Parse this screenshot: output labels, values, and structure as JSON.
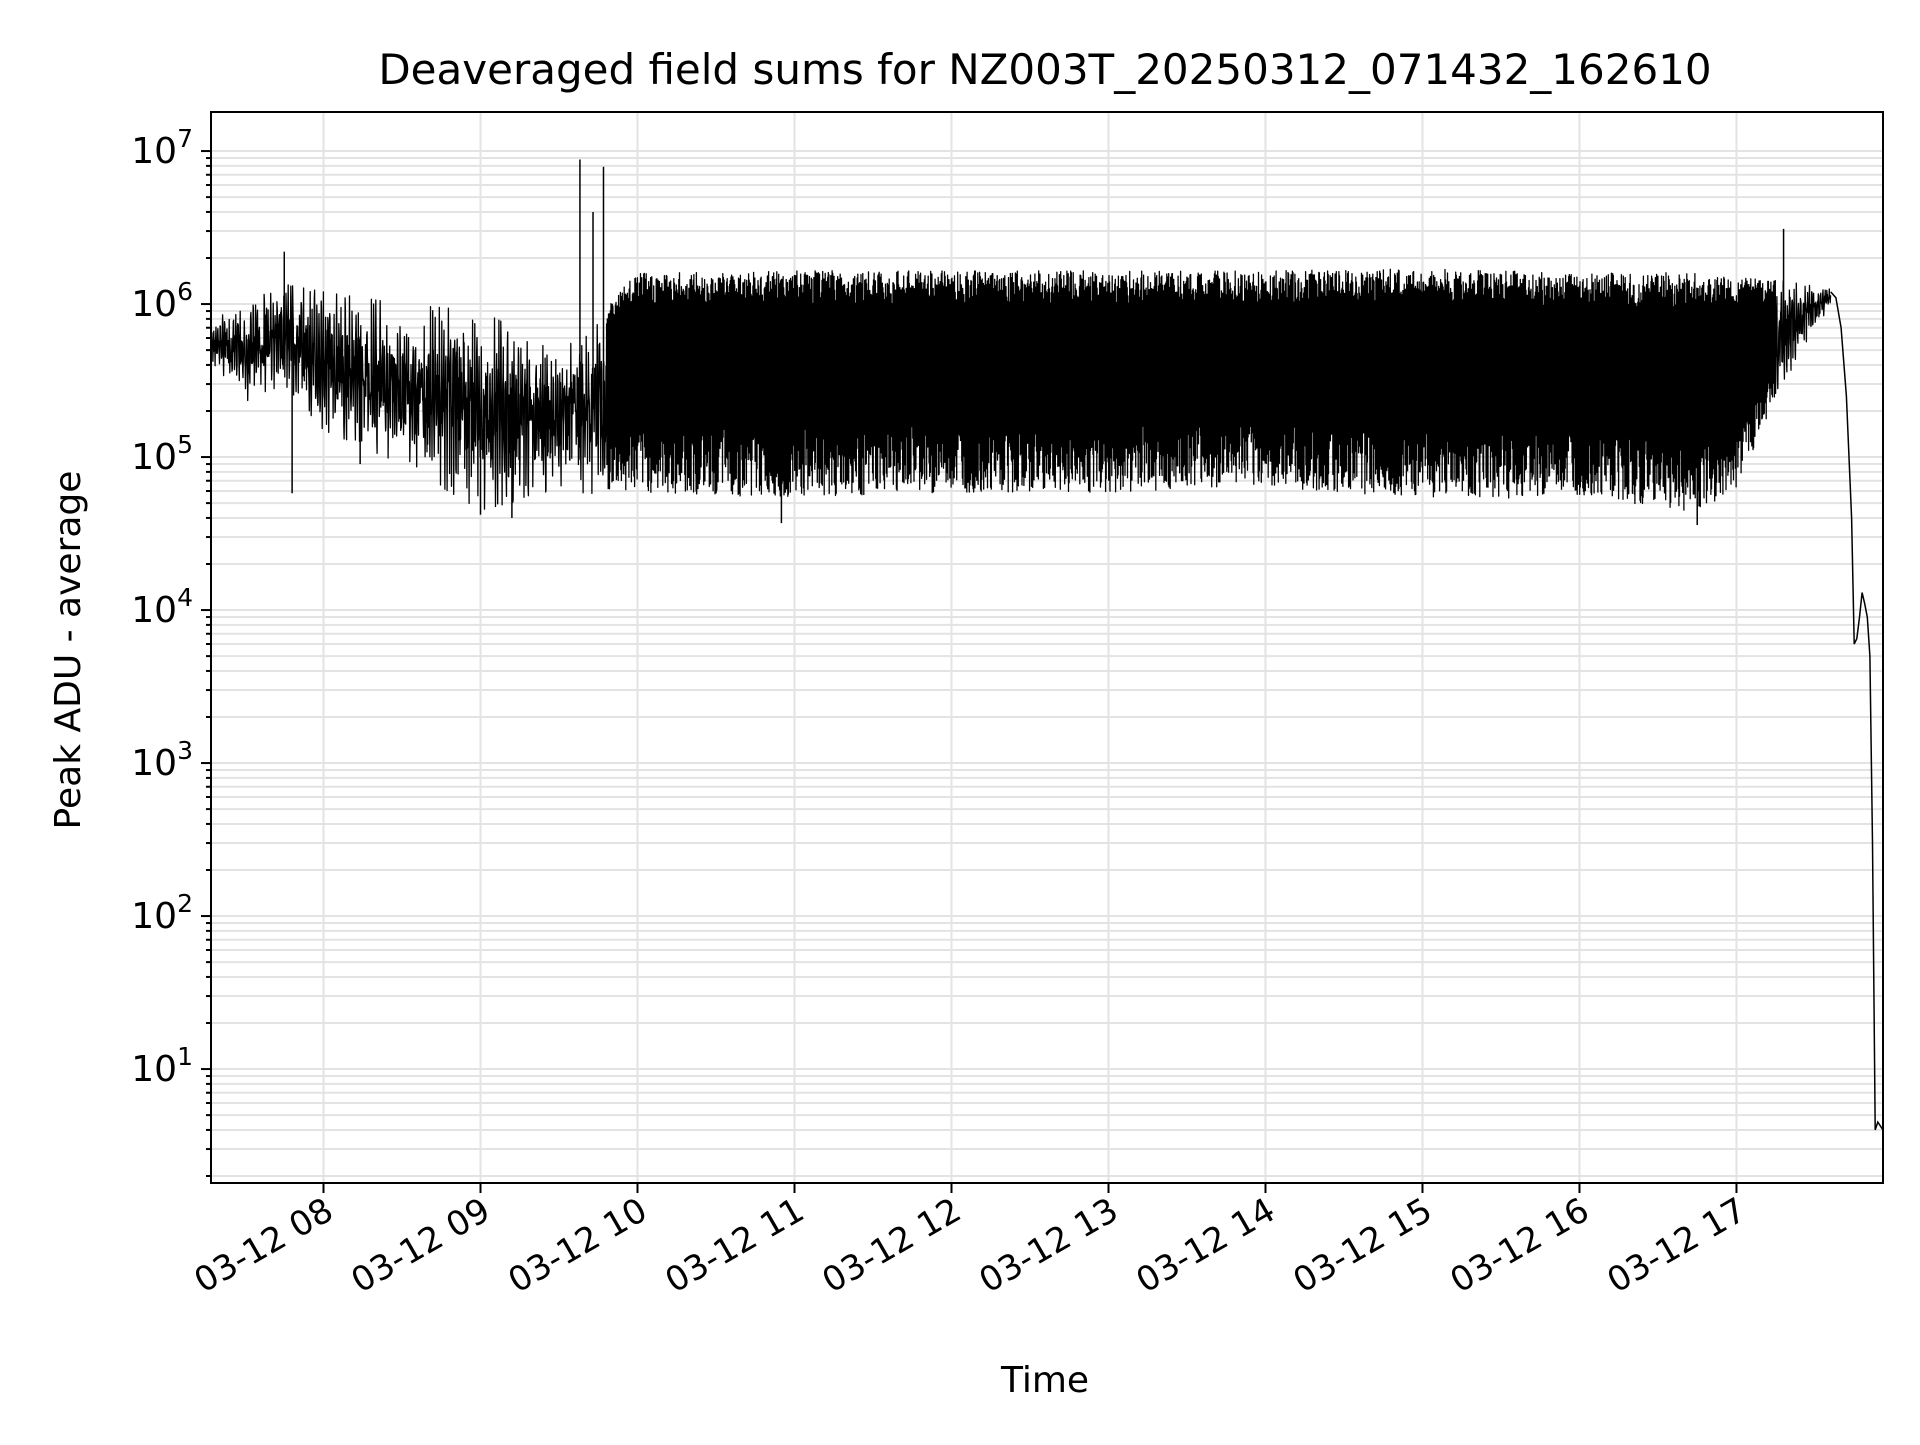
{
  "chart_data": {
    "type": "line",
    "title": "Deaveraged field sums for NZ003T_20250312_071432_162610",
    "xlabel": "Time",
    "ylabel": "Peak ADU - average",
    "yscale": "log",
    "ylim": [
      1.8,
      18000000
    ],
    "y_ticks": [
      {
        "value": 10,
        "base": "10",
        "exp": "1"
      },
      {
        "value": 100,
        "base": "10",
        "exp": "2"
      },
      {
        "value": 1000,
        "base": "10",
        "exp": "3"
      },
      {
        "value": 10000,
        "base": "10",
        "exp": "4"
      },
      {
        "value": 100000,
        "base": "10",
        "exp": "5"
      },
      {
        "value": 1000000,
        "base": "10",
        "exp": "6"
      },
      {
        "value": 10000000,
        "base": "10",
        "exp": "7"
      }
    ],
    "xlim": [
      "03-12 07:17",
      "03-12 17:56"
    ],
    "x_ticks": [
      "03-12 08",
      "03-12 09",
      "03-12 10",
      "03-12 11",
      "03-12 12",
      "03-12 13",
      "03-12 14",
      "03-12 15",
      "03-12 16",
      "03-12 17"
    ],
    "grid": true,
    "series": [
      {
        "color": "#000000",
        "envelope": [
          {
            "x": "03-12 07:17",
            "low": 420000,
            "high": 780000
          },
          {
            "x": "03-12 07:30",
            "low": 230000,
            "high": 1000000
          },
          {
            "x": "03-12 07:45",
            "low": 300000,
            "high": 1350000
          },
          {
            "x": "03-12 08:00",
            "low": 150000,
            "high": 1200000
          },
          {
            "x": "03-12 08:30",
            "low": 90000,
            "high": 1000000
          },
          {
            "x": "03-12 09:00",
            "low": 45000,
            "high": 900000
          },
          {
            "x": "03-12 09:30",
            "low": 60000,
            "high": 500000
          },
          {
            "x": "03-12 10:00",
            "low": 55000,
            "high": 1600000
          },
          {
            "x": "03-12 11:00",
            "low": 50000,
            "high": 1650000
          },
          {
            "x": "03-12 12:00",
            "low": 55000,
            "high": 1650000
          },
          {
            "x": "03-12 13:00",
            "low": 55000,
            "high": 1650000
          },
          {
            "x": "03-12 14:00",
            "low": 60000,
            "high": 1650000
          },
          {
            "x": "03-12 15:00",
            "low": 50000,
            "high": 1700000
          },
          {
            "x": "03-12 16:00",
            "low": 50000,
            "high": 1600000
          },
          {
            "x": "03-12 16:45",
            "low": 40000,
            "high": 1600000
          },
          {
            "x": "03-12 17:00",
            "low": 60000,
            "high": 1500000
          },
          {
            "x": "03-12 17:20",
            "low": 350000,
            "high": 1400000
          },
          {
            "x": "03-12 17:36",
            "low": 1000000,
            "high": 1250000
          }
        ],
        "spikes": [
          {
            "x": "03-12 07:45",
            "y": 2200000
          },
          {
            "x": "03-12 07:48",
            "y": 58000
          },
          {
            "x": "03-12 08:14",
            "y": 90000
          },
          {
            "x": "03-12 09:00",
            "y": 42000
          },
          {
            "x": "03-12 09:12",
            "y": 40000
          },
          {
            "x": "03-12 09:38",
            "y": 8800000
          },
          {
            "x": "03-12 09:43",
            "y": 4000000
          },
          {
            "x": "03-12 09:47",
            "y": 7900000
          },
          {
            "x": "03-12 10:55",
            "y": 37000
          },
          {
            "x": "03-12 16:45",
            "y": 36000
          },
          {
            "x": "03-12 17:18",
            "y": 3100000
          }
        ],
        "tail": [
          {
            "x": "03-12 17:36",
            "y": 1200000
          },
          {
            "x": "03-12 17:38",
            "y": 1100000
          },
          {
            "x": "03-12 17:40",
            "y": 700000
          },
          {
            "x": "03-12 17:42",
            "y": 250000
          },
          {
            "x": "03-12 17:44",
            "y": 40000
          },
          {
            "x": "03-12 17:45",
            "y": 6000
          },
          {
            "x": "03-12 17:46",
            "y": 6500
          },
          {
            "x": "03-12 17:47",
            "y": 9000
          },
          {
            "x": "03-12 17:48",
            "y": 13000
          },
          {
            "x": "03-12 17:49",
            "y": 11000
          },
          {
            "x": "03-12 17:50",
            "y": 9000
          },
          {
            "x": "03-12 17:51",
            "y": 5000
          },
          {
            "x": "03-12 17:52",
            "y": 300
          },
          {
            "x": "03-12 17:53",
            "y": 4
          },
          {
            "x": "03-12 17:54",
            "y": 4.5
          },
          {
            "x": "03-12 17:56",
            "y": 4
          }
        ]
      }
    ]
  }
}
